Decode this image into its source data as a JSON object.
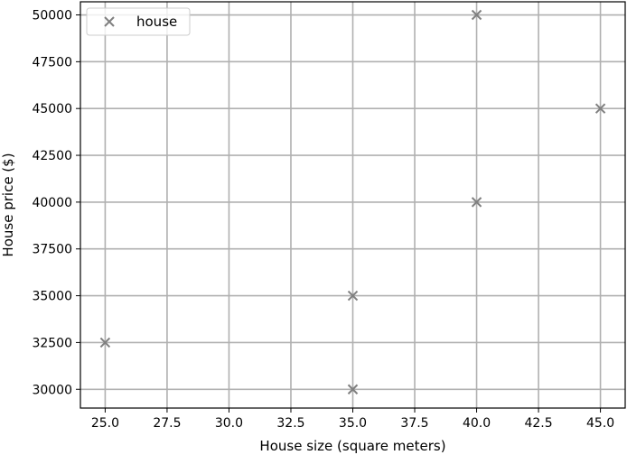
{
  "chart_data": {
    "type": "scatter",
    "xlabel": "House size (square meters)",
    "ylabel": "House price ($)",
    "xlim": [
      24.0,
      46.0
    ],
    "ylim": [
      29000,
      50700
    ],
    "x_ticks": [
      "25.0",
      "27.5",
      "30.0",
      "32.5",
      "35.0",
      "37.5",
      "40.0",
      "42.5",
      "45.0"
    ],
    "x_tick_values": [
      25.0,
      27.5,
      30.0,
      32.5,
      35.0,
      37.5,
      40.0,
      42.5,
      45.0
    ],
    "y_ticks": [
      "30000",
      "32500",
      "35000",
      "37500",
      "40000",
      "42500",
      "45000",
      "47500",
      "50000"
    ],
    "y_tick_values": [
      30000,
      32500,
      35000,
      37500,
      40000,
      42500,
      45000,
      47500,
      50000
    ],
    "grid": true,
    "legend_position": "top-left",
    "series": [
      {
        "name": "house",
        "marker": "x",
        "color": "#808080",
        "points": [
          {
            "x": 25,
            "y": 32500
          },
          {
            "x": 35,
            "y": 35000
          },
          {
            "x": 35,
            "y": 30000
          },
          {
            "x": 40,
            "y": 50000
          },
          {
            "x": 40,
            "y": 40000
          },
          {
            "x": 45,
            "y": 45000
          }
        ]
      }
    ]
  }
}
